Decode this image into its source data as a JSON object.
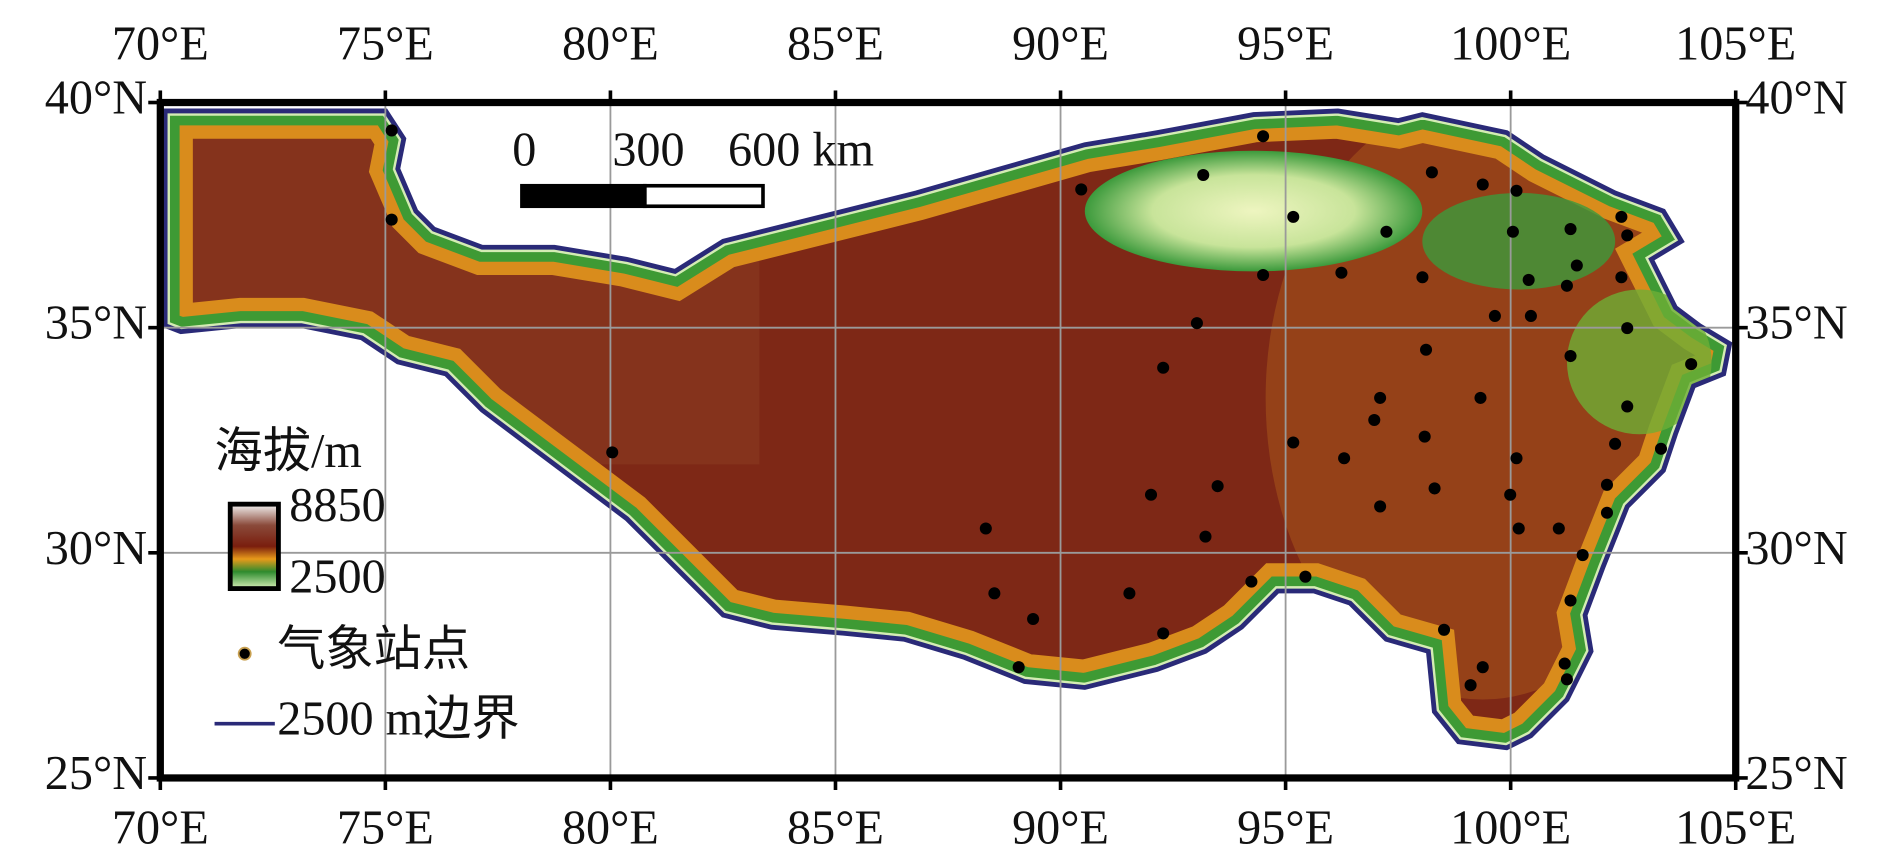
{
  "map": {
    "xlim": [
      70,
      105
    ],
    "ylim": [
      25,
      40
    ],
    "xticks": [
      {
        "value": 70,
        "label": "70°E"
      },
      {
        "value": 75,
        "label": "75°E"
      },
      {
        "value": 80,
        "label": "80°E"
      },
      {
        "value": 85,
        "label": "85°E"
      },
      {
        "value": 90,
        "label": "90°E"
      },
      {
        "value": 95,
        "label": "95°E"
      },
      {
        "value": 100,
        "label": "100°E"
      },
      {
        "value": 105,
        "label": "105°E"
      }
    ],
    "yticks": [
      {
        "value": 25,
        "label": "25°N"
      },
      {
        "value": 30,
        "label": "30°N"
      },
      {
        "value": 35,
        "label": "35°N"
      },
      {
        "value": 40,
        "label": "40°N"
      }
    ],
    "grid": true,
    "scale_bar": {
      "labels": [
        "0",
        "300",
        "600 km"
      ]
    },
    "legend": {
      "elevation_title": "海拔/m",
      "max": 8850,
      "min": 2500,
      "stations": "气象站点",
      "boundary": "2500 m边界"
    },
    "stations": {
      "lon": [
        75.14,
        75.14,
        80.04,
        90.46,
        93.17,
        94.5,
        95.17,
        94.5,
        96.24,
        97.24,
        98.25,
        98.04,
        99.38,
        100.13,
        100.05,
        101.33,
        102.46,
        102.59,
        101.47,
        100.4,
        101.25,
        102.46,
        99.65,
        100.45,
        93.03,
        92.28,
        98.12,
        101.33,
        102.59,
        99.33,
        97.1,
        96.97,
        98.09,
        95.17,
        96.3,
        100.13,
        102.59,
        102.32,
        103.34,
        104.01,
        93.49,
        92.01,
        98.31,
        99.99,
        102.14,
        97.1,
        88.34,
        93.22,
        100.18,
        101.07,
        102.14,
        101.6,
        94.24,
        95.44,
        88.53,
        91.53,
        101.33,
        89.39,
        92.28,
        98.52,
        99.38,
        101.2,
        89.07,
        99.11,
        101.25
      ],
      "lat": [
        39.38,
        37.4,
        32.23,
        38.07,
        38.39,
        39.25,
        37.46,
        36.17,
        36.22,
        37.13,
        38.45,
        36.12,
        38.18,
        38.04,
        37.13,
        37.19,
        37.46,
        37.05,
        36.38,
        36.06,
        35.93,
        36.12,
        35.26,
        35.26,
        35.1,
        34.11,
        34.51,
        34.37,
        34.99,
        33.44,
        33.44,
        32.95,
        32.58,
        32.45,
        32.1,
        32.1,
        33.25,
        32.42,
        32.31,
        34.19,
        31.48,
        31.29,
        31.43,
        31.29,
        31.51,
        31.03,
        30.54,
        30.36,
        30.54,
        30.54,
        30.89,
        29.95,
        29.36,
        29.47,
        29.1,
        29.1,
        28.94,
        28.53,
        28.21,
        28.29,
        27.46,
        27.54,
        27.46,
        27.06,
        27.19
      ]
    }
  }
}
